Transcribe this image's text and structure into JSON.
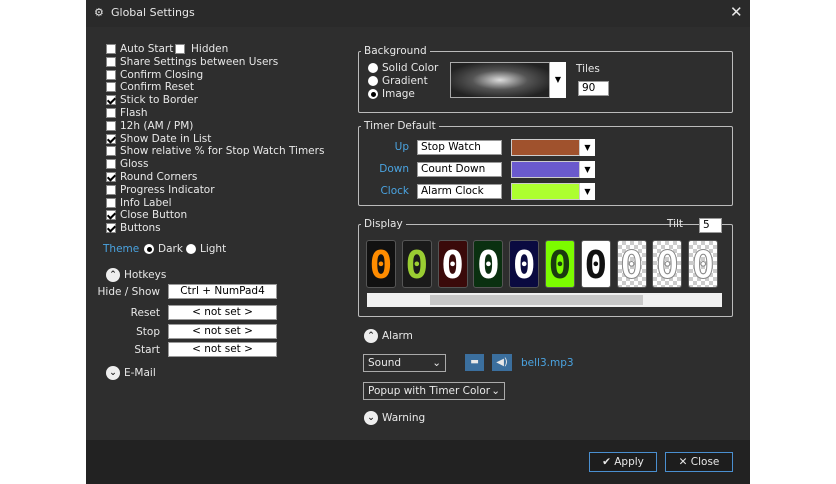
{
  "window": {
    "title": "Global Settings"
  },
  "options": [
    {
      "label": "Auto Start",
      "checked": false
    },
    {
      "label": "Share Settings between Users",
      "checked": false
    },
    {
      "label": "Confirm Closing",
      "checked": false
    },
    {
      "label": "Confirm Reset",
      "checked": false
    },
    {
      "label": "Stick to Border",
      "checked": true
    },
    {
      "label": "Flash",
      "checked": false
    },
    {
      "label": "12h (AM / PM)",
      "checked": false
    },
    {
      "label": "Show Date in List",
      "checked": true
    },
    {
      "label": "Show relative % for Stop Watch Timers",
      "checked": false
    },
    {
      "label": "Gloss",
      "checked": false
    },
    {
      "label": "Round Corners",
      "checked": true
    },
    {
      "label": "Progress Indicator",
      "checked": false
    },
    {
      "label": "Info Label",
      "checked": false
    },
    {
      "label": "Close Button",
      "checked": true
    },
    {
      "label": "Buttons",
      "checked": true
    }
  ],
  "hidden": {
    "label": "Hidden",
    "checked": false
  },
  "theme": {
    "label": "Theme",
    "options": [
      "Dark",
      "Light"
    ],
    "selected": 0
  },
  "hotkeys": {
    "title": "Hotkeys",
    "rows": [
      {
        "label": "Hide / Show",
        "value": "Ctrl + NumPad4"
      },
      {
        "label": "Reset",
        "value": "< not set >"
      },
      {
        "label": "Stop",
        "value": "< not set >"
      },
      {
        "label": "Start",
        "value": "< not set >"
      }
    ]
  },
  "email": {
    "title": "E-Mail"
  },
  "background": {
    "title": "Background",
    "options": [
      "Solid Color",
      "Gradient",
      "Image"
    ],
    "selected": 2,
    "tiles_label": "Tiles",
    "tiles": 90
  },
  "timer_default": {
    "title": "Timer Default",
    "rows": [
      {
        "label": "Up",
        "value": "Stop Watch",
        "color": "#a0522d"
      },
      {
        "label": "Down",
        "value": "Count Down",
        "color": "#6a5acd"
      },
      {
        "label": "Clock",
        "value": "Alarm Clock",
        "color": "#adff2f"
      }
    ]
  },
  "display": {
    "title": "Display",
    "tilt_label": "Tilt",
    "tilt": 5,
    "digits": [
      {
        "digit": "0",
        "color": "#ff8c00",
        "background": "#111111"
      },
      {
        "digit": "0",
        "color": "#9acd32",
        "background": "#1a1a1a"
      },
      {
        "digit": "0",
        "color": "#ffffff",
        "background": "#3a0a0a"
      },
      {
        "digit": "0",
        "color": "#ffffff",
        "background": "#0a3010"
      },
      {
        "digit": "0",
        "color": "#ffffff",
        "background": "#0a0a40"
      },
      {
        "digit": "0",
        "color": "#1a3a10",
        "background": "#7cfc00"
      },
      {
        "digit": "0",
        "color": "#111111",
        "background": "#ffffff"
      },
      {
        "digit": "0",
        "color": "#ffffff",
        "background": "checker"
      },
      {
        "digit": "0",
        "color": "#ffffff",
        "background": "checker"
      },
      {
        "digit": "0",
        "color": "#ffffff",
        "background": "checker"
      }
    ]
  },
  "alarm": {
    "title": "Alarm",
    "sound": "Sound",
    "file": "bell3.mp3",
    "popup": "Popup with Timer Color",
    "warning": "Warning"
  },
  "buttons": {
    "apply": "Apply",
    "close": "Close"
  }
}
